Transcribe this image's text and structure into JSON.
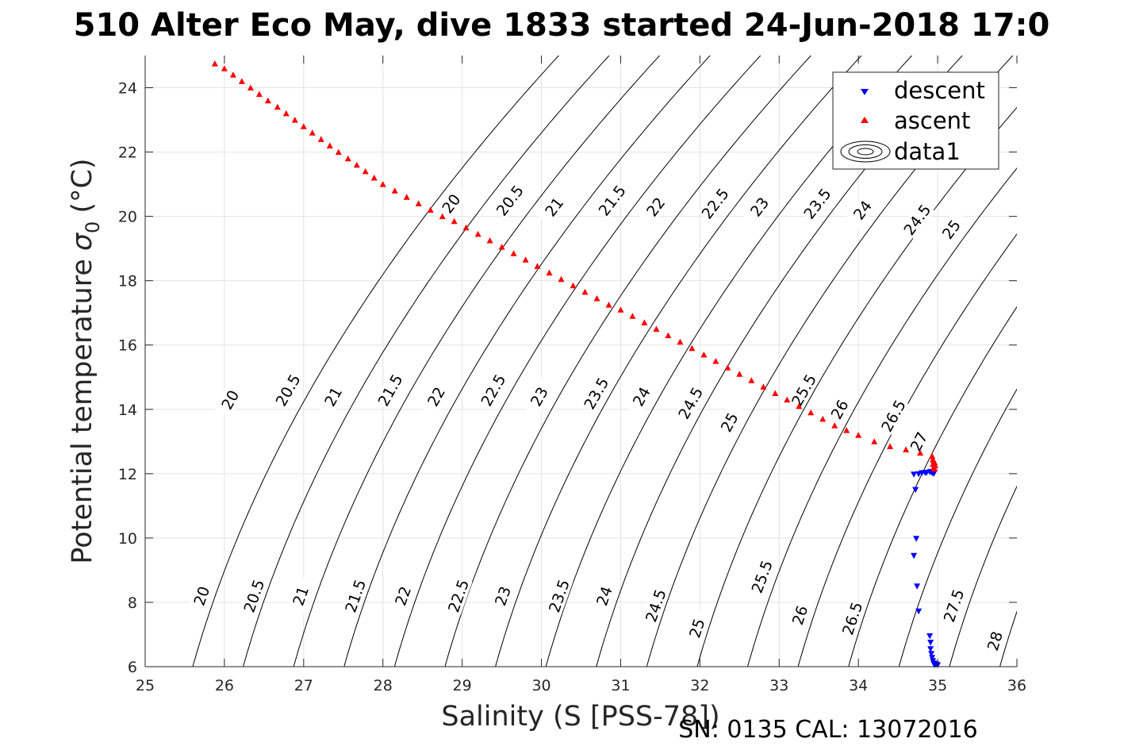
{
  "chart_data": {
    "type": "scatter",
    "title": "510 Alter Eco May, dive 1833 started 24-Jun-2018 17:0",
    "xlabel": "Salinity (S [PSS-78])",
    "ylabel": "Potential temperature",
    "ylabel_symbol": "σ",
    "ylabel_subscript": "0",
    "ylabel_unit": "(°C)",
    "footer": "SN: 0135  CAL: 13072016",
    "xlim": [
      25,
      36
    ],
    "ylim": [
      6,
      25
    ],
    "xticks": [
      25,
      26,
      27,
      28,
      29,
      30,
      31,
      32,
      33,
      34,
      35,
      36
    ],
    "yticks": [
      6,
      8,
      10,
      12,
      14,
      16,
      18,
      20,
      22,
      24
    ],
    "grid": true,
    "legend_position": "top-right",
    "legend": [
      "descent",
      "ascent",
      "data1"
    ],
    "contour_levels": [
      20,
      20.5,
      21,
      21.5,
      22,
      22.5,
      23,
      23.5,
      24,
      24.5,
      25,
      25.5,
      26,
      26.5,
      27,
      27.5,
      28
    ],
    "contour_color": "#000000",
    "contour_labels": [
      {
        "text": "20",
        "s": 25.71,
        "t": 8.2
      },
      {
        "text": "20.5",
        "s": 26.37,
        "t": 8.2
      },
      {
        "text": "21",
        "s": 26.96,
        "t": 8.2
      },
      {
        "text": "21.5",
        "s": 27.65,
        "t": 8.2
      },
      {
        "text": "22",
        "s": 28.25,
        "t": 8.2
      },
      {
        "text": "22.5",
        "s": 28.95,
        "t": 8.2
      },
      {
        "text": "23",
        "s": 29.51,
        "t": 8.2
      },
      {
        "text": "23.5",
        "s": 30.22,
        "t": 8.2
      },
      {
        "text": "24",
        "s": 30.79,
        "t": 8.2
      },
      {
        "text": "24.5",
        "s": 31.44,
        "t": 7.9
      },
      {
        "text": "25",
        "s": 31.96,
        "t": 7.2
      },
      {
        "text": "25.5",
        "s": 32.78,
        "t": 8.8
      },
      {
        "text": "26",
        "s": 33.26,
        "t": 7.6
      },
      {
        "text": "26.5",
        "s": 33.92,
        "t": 7.5
      },
      {
        "text": "27.5",
        "s": 35.2,
        "t": 7.9
      },
      {
        "text": "28",
        "s": 35.72,
        "t": 6.8
      },
      {
        "text": "20",
        "s": 26.07,
        "t": 14.3
      },
      {
        "text": "20.5",
        "s": 26.8,
        "t": 14.6
      },
      {
        "text": "21",
        "s": 27.37,
        "t": 14.4
      },
      {
        "text": "21.5",
        "s": 28.09,
        "t": 14.6
      },
      {
        "text": "22",
        "s": 28.67,
        "t": 14.4
      },
      {
        "text": "22.5",
        "s": 29.39,
        "t": 14.6
      },
      {
        "text": "23",
        "s": 29.97,
        "t": 14.4
      },
      {
        "text": "23.5",
        "s": 30.69,
        "t": 14.5
      },
      {
        "text": "24",
        "s": 31.26,
        "t": 14.4
      },
      {
        "text": "24.5",
        "s": 31.88,
        "t": 14.2
      },
      {
        "text": "25",
        "s": 32.37,
        "t": 13.6
      },
      {
        "text": "25.5",
        "s": 33.31,
        "t": 14.6
      },
      {
        "text": "26",
        "s": 33.76,
        "t": 14.0
      },
      {
        "text": "26.5",
        "s": 34.44,
        "t": 13.8
      },
      {
        "text": "27",
        "s": 34.76,
        "t": 13.0
      },
      {
        "text": "20",
        "s": 28.86,
        "t": 20.4
      },
      {
        "text": "20.5",
        "s": 29.6,
        "t": 20.5
      },
      {
        "text": "21",
        "s": 30.16,
        "t": 20.3
      },
      {
        "text": "21.5",
        "s": 30.89,
        "t": 20.5
      },
      {
        "text": "22",
        "s": 31.44,
        "t": 20.3
      },
      {
        "text": "22.5",
        "s": 32.19,
        "t": 20.4
      },
      {
        "text": "23",
        "s": 32.75,
        "t": 20.3
      },
      {
        "text": "23.5",
        "s": 33.48,
        "t": 20.4
      },
      {
        "text": "24",
        "s": 34.05,
        "t": 20.2
      },
      {
        "text": "24.5",
        "s": 34.74,
        "t": 19.9
      },
      {
        "text": "25",
        "s": 35.17,
        "t": 19.6
      }
    ],
    "series": [
      {
        "name": "descent",
        "marker": "triangle-down",
        "color": "#0000ff",
        "points": [
          [
            34.86,
            12.03
          ],
          [
            34.9,
            12.05
          ],
          [
            34.93,
            12.02
          ],
          [
            34.95,
            12.0
          ],
          [
            34.96,
            12.04
          ],
          [
            34.92,
            12.06
          ],
          [
            34.84,
            12.03
          ],
          [
            34.8,
            12.02
          ],
          [
            34.76,
            11.99
          ],
          [
            34.7,
            11.98
          ],
          [
            34.72,
            11.5
          ],
          [
            34.73,
            9.98
          ],
          [
            34.7,
            9.45
          ],
          [
            34.74,
            8.5
          ],
          [
            34.76,
            7.72
          ],
          [
            34.9,
            6.95
          ],
          [
            34.91,
            6.75
          ],
          [
            34.91,
            6.55
          ],
          [
            34.92,
            6.4
          ],
          [
            34.93,
            6.28
          ],
          [
            34.94,
            6.18
          ],
          [
            34.95,
            6.1
          ],
          [
            34.96,
            6.05
          ],
          [
            34.98,
            6.08
          ],
          [
            35.0,
            6.05
          ]
        ]
      },
      {
        "name": "ascent",
        "marker": "triangle-up",
        "color": "#ff0000",
        "points": [
          [
            25.88,
            24.75
          ],
          [
            26.0,
            24.6
          ],
          [
            26.11,
            24.4
          ],
          [
            26.22,
            24.2
          ],
          [
            26.33,
            24.0
          ],
          [
            26.44,
            23.8
          ],
          [
            26.55,
            23.6
          ],
          [
            26.67,
            23.4
          ],
          [
            26.78,
            23.2
          ],
          [
            26.89,
            23.0
          ],
          [
            27.0,
            22.8
          ],
          [
            27.11,
            22.6
          ],
          [
            27.22,
            22.4
          ],
          [
            27.33,
            22.2
          ],
          [
            27.44,
            22.0
          ],
          [
            27.56,
            21.8
          ],
          [
            27.67,
            21.6
          ],
          [
            27.78,
            21.4
          ],
          [
            27.89,
            21.2
          ],
          [
            28.0,
            21.0
          ],
          [
            28.15,
            20.8
          ],
          [
            28.3,
            20.6
          ],
          [
            28.45,
            20.4
          ],
          [
            28.6,
            20.2
          ],
          [
            28.75,
            20.0
          ],
          [
            28.9,
            19.85
          ],
          [
            29.05,
            19.65
          ],
          [
            29.2,
            19.45
          ],
          [
            29.35,
            19.25
          ],
          [
            29.5,
            19.05
          ],
          [
            29.65,
            18.85
          ],
          [
            29.8,
            18.65
          ],
          [
            29.95,
            18.45
          ],
          [
            30.1,
            18.25
          ],
          [
            30.25,
            18.05
          ],
          [
            30.4,
            17.85
          ],
          [
            30.55,
            17.65
          ],
          [
            30.7,
            17.45
          ],
          [
            30.85,
            17.25
          ],
          [
            31.0,
            17.1
          ],
          [
            31.15,
            16.9
          ],
          [
            31.3,
            16.7
          ],
          [
            31.45,
            16.5
          ],
          [
            31.6,
            16.3
          ],
          [
            31.75,
            16.1
          ],
          [
            31.9,
            15.9
          ],
          [
            32.05,
            15.7
          ],
          [
            32.2,
            15.5
          ],
          [
            32.35,
            15.3
          ],
          [
            32.5,
            15.1
          ],
          [
            32.65,
            14.9
          ],
          [
            32.8,
            14.7
          ],
          [
            32.95,
            14.5
          ],
          [
            33.1,
            14.3
          ],
          [
            33.25,
            14.1
          ],
          [
            33.4,
            13.9
          ],
          [
            33.55,
            13.7
          ],
          [
            33.7,
            13.5
          ],
          [
            33.85,
            13.35
          ],
          [
            34.0,
            13.2
          ],
          [
            34.2,
            13.0
          ],
          [
            34.4,
            12.85
          ],
          [
            34.6,
            12.75
          ],
          [
            34.78,
            12.65
          ],
          [
            34.93,
            12.55
          ],
          [
            34.94,
            12.45
          ],
          [
            34.95,
            12.4
          ],
          [
            34.96,
            12.35
          ],
          [
            34.94,
            12.3
          ],
          [
            34.97,
            12.25
          ],
          [
            34.95,
            12.2
          ],
          [
            34.96,
            12.15
          ]
        ]
      }
    ]
  }
}
